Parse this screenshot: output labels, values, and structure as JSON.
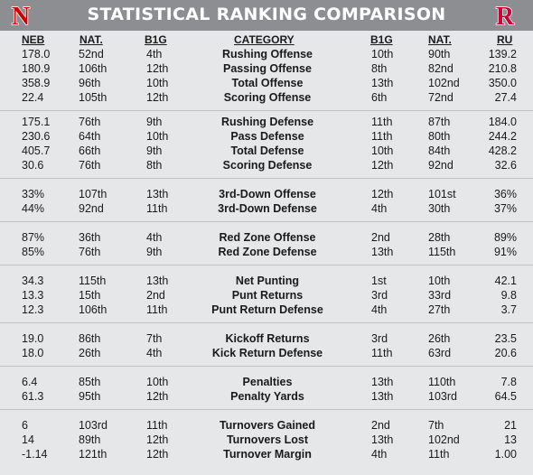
{
  "title": "STATISTICAL RANKING COMPARISON",
  "logos": {
    "left": "N",
    "right": "R",
    "left_color": "#d00000",
    "right_color": "#cc0033"
  },
  "columns": {
    "neb": "NEB",
    "neb_nat": "NAT.",
    "neb_b1g": "B1G",
    "category": "CATEGORY",
    "ru_b1g": "B1G",
    "ru_nat": "NAT.",
    "ru": "RU"
  },
  "groups": [
    {
      "rows": [
        {
          "neb": "178.0",
          "neb_nat": "52nd",
          "neb_b1g": "4th",
          "category": "Rushing Offense",
          "ru_b1g": "10th",
          "ru_nat": "90th",
          "ru": "139.2"
        },
        {
          "neb": "180.9",
          "neb_nat": "106th",
          "neb_b1g": "12th",
          "category": "Passing Offense",
          "ru_b1g": "8th",
          "ru_nat": "82nd",
          "ru": "210.8"
        },
        {
          "neb": "358.9",
          "neb_nat": "96th",
          "neb_b1g": "10th",
          "category": "Total Offense",
          "ru_b1g": "13th",
          "ru_nat": "102nd",
          "ru": "350.0"
        },
        {
          "neb": "22.4",
          "neb_nat": "105th",
          "neb_b1g": "12th",
          "category": "Scoring Offense",
          "ru_b1g": "6th",
          "ru_nat": "72nd",
          "ru": "27.4"
        }
      ]
    },
    {
      "rows": [
        {
          "neb": "175.1",
          "neb_nat": "76th",
          "neb_b1g": "9th",
          "category": "Rushing Defense",
          "ru_b1g": "11th",
          "ru_nat": "87th",
          "ru": "184.0"
        },
        {
          "neb": "230.6",
          "neb_nat": "64th",
          "neb_b1g": "10th",
          "category": "Pass Defense",
          "ru_b1g": "11th",
          "ru_nat": "80th",
          "ru": "244.2"
        },
        {
          "neb": "405.7",
          "neb_nat": "66th",
          "neb_b1g": "9th",
          "category": "Total Defense",
          "ru_b1g": "10th",
          "ru_nat": "84th",
          "ru": "428.2"
        },
        {
          "neb": "30.6",
          "neb_nat": "76th",
          "neb_b1g": "8th",
          "category": "Scoring Defense",
          "ru_b1g": "12th",
          "ru_nat": "92nd",
          "ru": "32.6"
        }
      ]
    },
    {
      "rows": [
        {
          "neb": "33%",
          "neb_nat": "107th",
          "neb_b1g": "13th",
          "category": "3rd-Down Offense",
          "ru_b1g": "12th",
          "ru_nat": "101st",
          "ru": "36%"
        },
        {
          "neb": "44%",
          "neb_nat": "92nd",
          "neb_b1g": "11th",
          "category": "3rd-Down Defense",
          "ru_b1g": "4th",
          "ru_nat": "30th",
          "ru": "37%"
        }
      ]
    },
    {
      "rows": [
        {
          "neb": "87%",
          "neb_nat": "36th",
          "neb_b1g": "4th",
          "category": "Red Zone Offense",
          "ru_b1g": "2nd",
          "ru_nat": "28th",
          "ru": "89%"
        },
        {
          "neb": "85%",
          "neb_nat": "76th",
          "neb_b1g": "9th",
          "category": "Red Zone Defense",
          "ru_b1g": "13th",
          "ru_nat": "115th",
          "ru": "91%"
        }
      ]
    },
    {
      "rows": [
        {
          "neb": "34.3",
          "neb_nat": "115th",
          "neb_b1g": "13th",
          "category": "Net Punting",
          "ru_b1g": "1st",
          "ru_nat": "10th",
          "ru": "42.1"
        },
        {
          "neb": "13.3",
          "neb_nat": "15th",
          "neb_b1g": "2nd",
          "category": "Punt Returns",
          "ru_b1g": "3rd",
          "ru_nat": "33rd",
          "ru": "9.8"
        },
        {
          "neb": "12.3",
          "neb_nat": "106th",
          "neb_b1g": "11th",
          "category": "Punt Return Defense",
          "ru_b1g": "4th",
          "ru_nat": "27th",
          "ru": "3.7"
        }
      ]
    },
    {
      "rows": [
        {
          "neb": "19.0",
          "neb_nat": "86th",
          "neb_b1g": "7th",
          "category": "Kickoff Returns",
          "ru_b1g": "3rd",
          "ru_nat": "26th",
          "ru": "23.5"
        },
        {
          "neb": "18.0",
          "neb_nat": "26th",
          "neb_b1g": "4th",
          "category": "Kick Return Defense",
          "ru_b1g": "11th",
          "ru_nat": "63rd",
          "ru": "20.6"
        }
      ]
    },
    {
      "rows": [
        {
          "neb": "6.4",
          "neb_nat": "85th",
          "neb_b1g": "10th",
          "category": "Penalties",
          "ru_b1g": "13th",
          "ru_nat": "110th",
          "ru": "7.8"
        },
        {
          "neb": "61.3",
          "neb_nat": "95th",
          "neb_b1g": "12th",
          "category": "Penalty Yards",
          "ru_b1g": "13th",
          "ru_nat": "103rd",
          "ru": "64.5"
        }
      ]
    },
    {
      "rows": [
        {
          "neb": "6",
          "neb_nat": "103rd",
          "neb_b1g": "11th",
          "category": "Turnovers Gained",
          "ru_b1g": "2nd",
          "ru_nat": "7th",
          "ru": "21"
        },
        {
          "neb": "14",
          "neb_nat": "89th",
          "neb_b1g": "12th",
          "category": "Turnovers Lost",
          "ru_b1g": "13th",
          "ru_nat": "102nd",
          "ru": "13"
        },
        {
          "neb": "-1.14",
          "neb_nat": "121th",
          "neb_b1g": "12th",
          "category": "Turnover Margin",
          "ru_b1g": "4th",
          "ru_nat": "11th",
          "ru": "1.00"
        }
      ]
    }
  ]
}
